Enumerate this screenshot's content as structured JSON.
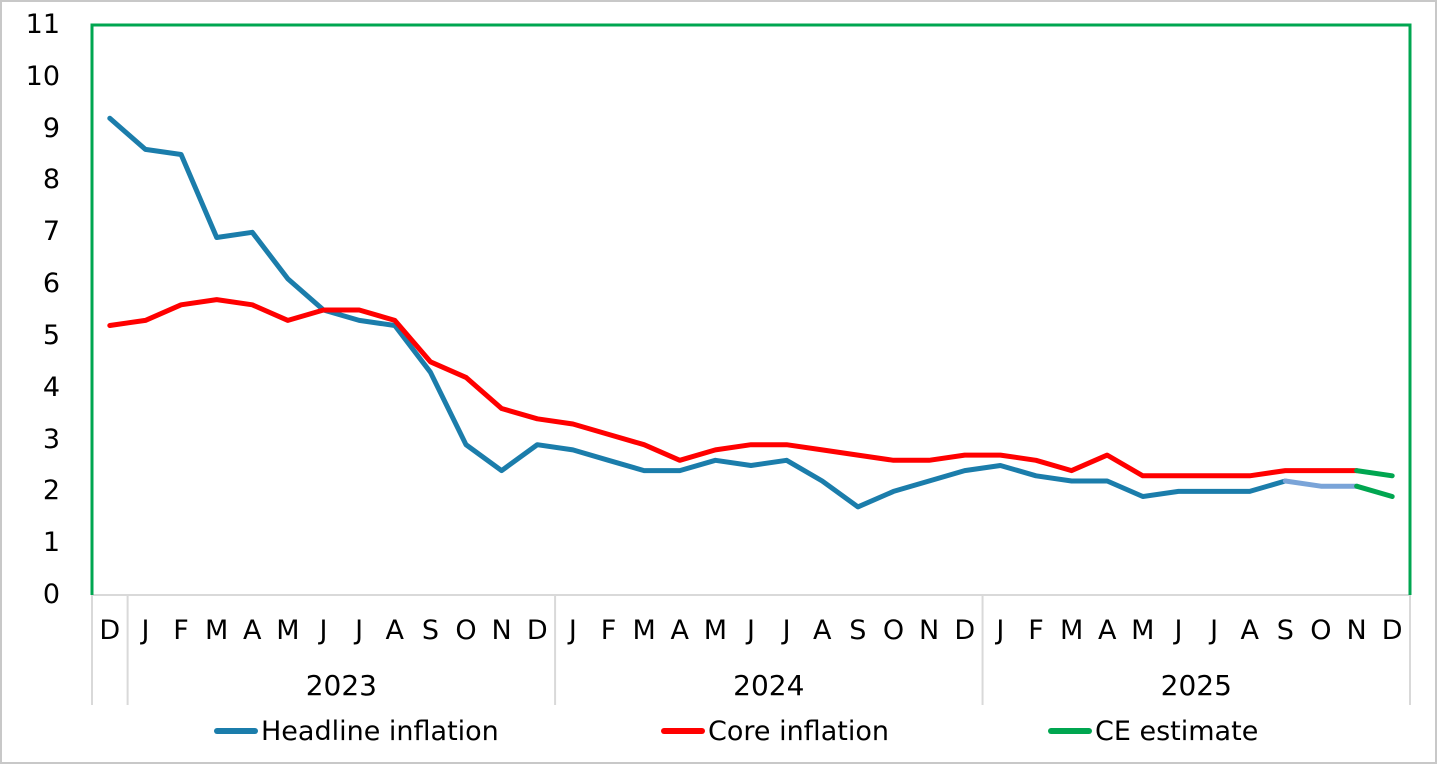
{
  "chart_data": {
    "type": "line",
    "title": "",
    "x_axis": {
      "unit": "month",
      "range": "Dec 2022 - Dec 2025",
      "month_labels": [
        "D",
        "J",
        "F",
        "M",
        "A",
        "M",
        "J",
        "J",
        "A",
        "S",
        "O",
        "N",
        "D",
        "J",
        "F",
        "M",
        "A",
        "M",
        "J",
        "J",
        "A",
        "S",
        "O",
        "N",
        "D",
        "J",
        "F",
        "M",
        "A",
        "M",
        "J",
        "J",
        "A",
        "S",
        "O",
        "N",
        "D"
      ],
      "year_groups": [
        {
          "label": "2023",
          "start_index": 1,
          "end_index": 12
        },
        {
          "label": "2024",
          "start_index": 13,
          "end_index": 24
        },
        {
          "label": "2025",
          "start_index": 25,
          "end_index": 36
        }
      ]
    },
    "y_axis": {
      "min": 0,
      "max": 11,
      "step": 1,
      "tick_labels": [
        "0",
        "1",
        "2",
        "3",
        "4",
        "5",
        "6",
        "7",
        "8",
        "9",
        "10",
        "11"
      ],
      "grid": false
    },
    "series": [
      {
        "id": "headline",
        "name": "Headline inflation",
        "color": "#1b7dab",
        "line_width": 5,
        "start_index": 0,
        "values": [
          9.2,
          8.6,
          8.5,
          6.9,
          7.0,
          6.1,
          5.5,
          5.3,
          5.2,
          4.3,
          2.9,
          2.4,
          2.9,
          2.8,
          2.6,
          2.4,
          2.4,
          2.6,
          2.5,
          2.6,
          2.2,
          1.7,
          2.0,
          2.2,
          2.4,
          2.5,
          2.3,
          2.2,
          2.2,
          1.9,
          2.0,
          2.0,
          2.0,
          2.2
        ]
      },
      {
        "id": "headline-estimate",
        "name": "Headline inflation (recent estimate)",
        "color": "#7aa4d8",
        "line_width": 5,
        "start_index": 33,
        "values": [
          2.2,
          2.1,
          2.1
        ]
      },
      {
        "id": "core",
        "name": "Core inflation",
        "color": "#ff0000",
        "line_width": 5,
        "start_index": 0,
        "values": [
          5.2,
          5.3,
          5.6,
          5.7,
          5.6,
          5.3,
          5.5,
          5.5,
          5.3,
          4.5,
          4.2,
          3.6,
          3.4,
          3.3,
          3.1,
          2.9,
          2.6,
          2.8,
          2.9,
          2.9,
          2.8,
          2.7,
          2.6,
          2.6,
          2.7,
          2.7,
          2.6,
          2.4,
          2.7,
          2.3,
          2.3,
          2.3,
          2.3,
          2.4,
          2.4,
          2.4
        ]
      },
      {
        "id": "core-ce-estimate",
        "name": "CE estimate (core)",
        "color": "#00a650",
        "line_width": 5,
        "start_index": 35,
        "values": [
          2.4,
          2.3
        ]
      },
      {
        "id": "headline-ce-estimate",
        "name": "CE estimate (headline)",
        "color": "#00a650",
        "line_width": 5,
        "start_index": 35,
        "values": [
          2.1,
          1.9
        ]
      }
    ],
    "legend": [
      {
        "label": "Headline inflation",
        "color": "#1b7dab"
      },
      {
        "label": "Core inflation",
        "color": "#ff0000"
      },
      {
        "label": "CE estimate",
        "color": "#00a650"
      }
    ],
    "style": {
      "plot_border_color": "#00a650",
      "axis_line_color": "#d9d9d9",
      "tick_color": "#d9d9d9",
      "text_color": "#000000",
      "background": "#ffffff",
      "outer_border_color": "#c8c8c8"
    }
  }
}
